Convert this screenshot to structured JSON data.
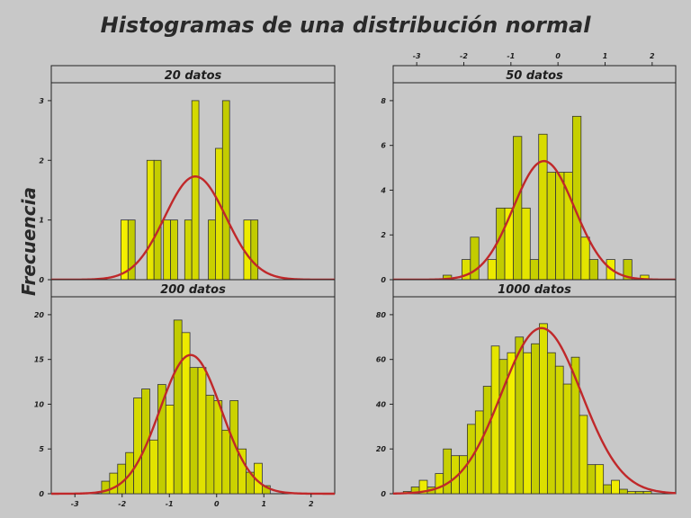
{
  "title": "Histogramas de una distribución normal",
  "ylabel": "Frecuencia",
  "colors": {
    "background": "#c8c8c8",
    "bar_light": "#f4f000",
    "bar_dark": "#b8c400",
    "bar_edge": "#333333",
    "curve": "#c0282a",
    "frame": "#222222"
  },
  "chart_data": [
    {
      "type": "bar",
      "title": "20 datos",
      "xlim": [
        -3.5,
        2.5
      ],
      "ylim": [
        0,
        3.3
      ],
      "yticks": [
        0,
        1,
        2,
        3
      ],
      "bin_width": 0.15,
      "bins": [
        {
          "x": -1.95,
          "y": 1
        },
        {
          "x": -1.8,
          "y": 1
        },
        {
          "x": -1.4,
          "y": 2
        },
        {
          "x": -1.25,
          "y": 2
        },
        {
          "x": -1.05,
          "y": 1
        },
        {
          "x": -0.9,
          "y": 1
        },
        {
          "x": -0.6,
          "y": 1
        },
        {
          "x": -0.45,
          "y": 3
        },
        {
          "x": -0.1,
          "y": 1
        },
        {
          "x": 0.05,
          "y": 2.2
        },
        {
          "x": 0.2,
          "y": 3
        },
        {
          "x": 0.65,
          "y": 1
        },
        {
          "x": 0.8,
          "y": 1
        }
      ],
      "curve": {
        "mean": -0.45,
        "sd": 0.65,
        "peak": 1.73
      }
    },
    {
      "type": "bar",
      "title": "50 datos",
      "xlim": [
        -3.5,
        2.5
      ],
      "ylim": [
        0,
        8.8
      ],
      "yticks": [
        0,
        2,
        4,
        6,
        8
      ],
      "xticks": [
        -3,
        -2,
        -1,
        0,
        1,
        2
      ],
      "xticks_position": "top",
      "bin_width": 0.18,
      "bins": [
        {
          "x": -2.35,
          "y": 0.2
        },
        {
          "x": -1.95,
          "y": 0.9
        },
        {
          "x": -1.77,
          "y": 1.9
        },
        {
          "x": -1.4,
          "y": 0.9
        },
        {
          "x": -1.22,
          "y": 3.2
        },
        {
          "x": -1.04,
          "y": 3.2
        },
        {
          "x": -0.86,
          "y": 6.4
        },
        {
          "x": -0.68,
          "y": 3.2
        },
        {
          "x": -0.5,
          "y": 0.9
        },
        {
          "x": -0.32,
          "y": 6.5
        },
        {
          "x": -0.14,
          "y": 4.8
        },
        {
          "x": 0.04,
          "y": 4.8
        },
        {
          "x": 0.22,
          "y": 4.8
        },
        {
          "x": 0.4,
          "y": 7.3
        },
        {
          "x": 0.58,
          "y": 1.9
        },
        {
          "x": 0.76,
          "y": 0.9
        },
        {
          "x": 1.12,
          "y": 0.9
        },
        {
          "x": 1.48,
          "y": 0.9
        },
        {
          "x": 1.84,
          "y": 0.2
        }
      ],
      "curve": {
        "mean": -0.3,
        "sd": 0.65,
        "peak": 5.3
      }
    },
    {
      "type": "bar",
      "title": "200 datos",
      "xlim": [
        -3.5,
        2.5
      ],
      "ylim": [
        0,
        22
      ],
      "yticks": [
        0,
        5,
        10,
        15,
        20
      ],
      "xticks": [
        -3,
        -2,
        -1,
        0,
        1,
        2
      ],
      "xticks_position": "bottom",
      "bin_width": 0.17,
      "bins": [
        {
          "x": -2.35,
          "y": 1.4
        },
        {
          "x": -2.18,
          "y": 2.3
        },
        {
          "x": -2.01,
          "y": 3.3
        },
        {
          "x": -1.84,
          "y": 4.6
        },
        {
          "x": -1.67,
          "y": 10.7
        },
        {
          "x": -1.5,
          "y": 11.7
        },
        {
          "x": -1.33,
          "y": 6.0
        },
        {
          "x": -1.16,
          "y": 12.2
        },
        {
          "x": -0.99,
          "y": 9.9
        },
        {
          "x": -0.82,
          "y": 19.4
        },
        {
          "x": -0.65,
          "y": 18.0
        },
        {
          "x": -0.48,
          "y": 14.1
        },
        {
          "x": -0.31,
          "y": 14.1
        },
        {
          "x": -0.14,
          "y": 11.0
        },
        {
          "x": 0.03,
          "y": 10.4
        },
        {
          "x": 0.2,
          "y": 7.1
        },
        {
          "x": 0.37,
          "y": 10.4
        },
        {
          "x": 0.54,
          "y": 5.0
        },
        {
          "x": 0.71,
          "y": 2.4
        },
        {
          "x": 0.88,
          "y": 3.4
        },
        {
          "x": 1.05,
          "y": 0.9
        }
      ],
      "curve": {
        "mean": -0.55,
        "sd": 0.65,
        "peak": 15.5
      }
    },
    {
      "type": "bar",
      "title": "1000 datos",
      "xlim": [
        -3.5,
        2.5
      ],
      "ylim": [
        0,
        88
      ],
      "yticks": [
        0,
        20,
        40,
        60,
        80
      ],
      "bin_width": 0.17,
      "bins": [
        {
          "x": -3.2,
          "y": 1
        },
        {
          "x": -3.03,
          "y": 3
        },
        {
          "x": -2.86,
          "y": 6
        },
        {
          "x": -2.69,
          "y": 3
        },
        {
          "x": -2.52,
          "y": 9
        },
        {
          "x": -2.35,
          "y": 20
        },
        {
          "x": -2.18,
          "y": 17
        },
        {
          "x": -2.01,
          "y": 17
        },
        {
          "x": -1.84,
          "y": 31
        },
        {
          "x": -1.67,
          "y": 37
        },
        {
          "x": -1.5,
          "y": 48
        },
        {
          "x": -1.33,
          "y": 66
        },
        {
          "x": -1.16,
          "y": 60
        },
        {
          "x": -0.99,
          "y": 63
        },
        {
          "x": -0.82,
          "y": 70
        },
        {
          "x": -0.65,
          "y": 63
        },
        {
          "x": -0.48,
          "y": 67
        },
        {
          "x": -0.31,
          "y": 76
        },
        {
          "x": -0.14,
          "y": 63
        },
        {
          "x": 0.03,
          "y": 57
        },
        {
          "x": 0.2,
          "y": 49
        },
        {
          "x": 0.37,
          "y": 61
        },
        {
          "x": 0.54,
          "y": 35
        },
        {
          "x": 0.71,
          "y": 13
        },
        {
          "x": 0.88,
          "y": 13
        },
        {
          "x": 1.05,
          "y": 4
        },
        {
          "x": 1.22,
          "y": 6
        },
        {
          "x": 1.39,
          "y": 2
        },
        {
          "x": 1.56,
          "y": 1
        },
        {
          "x": 1.73,
          "y": 1
        },
        {
          "x": 1.9,
          "y": 1
        }
      ],
      "curve": {
        "mean": -0.35,
        "sd": 0.85,
        "peak": 74
      }
    }
  ]
}
